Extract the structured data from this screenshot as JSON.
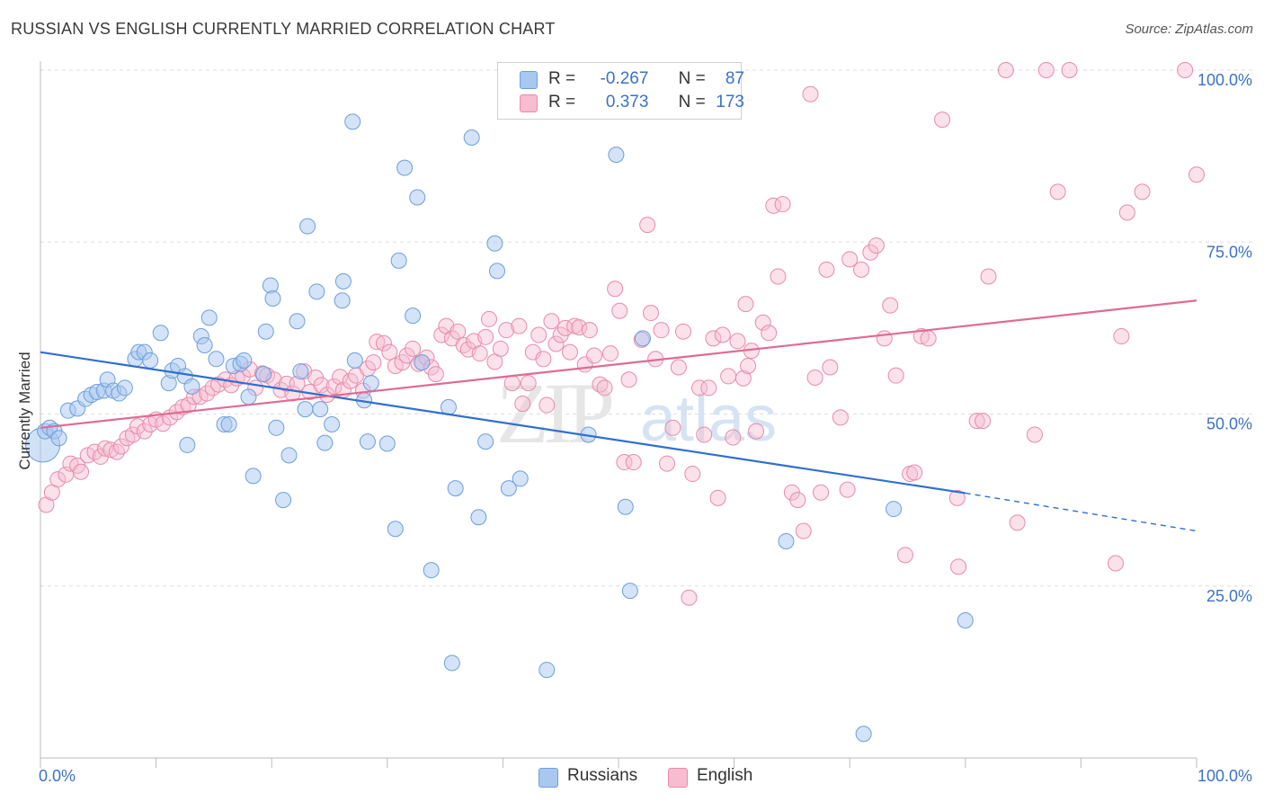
{
  "header": {
    "title": "RUSSIAN VS ENGLISH CURRENTLY MARRIED CORRELATION CHART",
    "source": "Source: ZipAtlas.com"
  },
  "legend": {
    "russians": {
      "r_label": "R =",
      "r_value": "-0.267",
      "n_label": "N =",
      "n_value": "87"
    },
    "english": {
      "r_label": "R =",
      "r_value": "0.373",
      "n_label": "N =",
      "n_value": "173"
    }
  },
  "colors": {
    "russians_fill": "#a9c8ef",
    "russians_stroke": "#6d9fdc",
    "russians_line": "#2f6fcf",
    "english_fill": "#f7bcd0",
    "english_stroke": "#e88aab",
    "english_line": "#e06a92",
    "tick_label": "#3a72c8",
    "grid": "#dddddd"
  },
  "watermark": {
    "zip": "ZIP",
    "atlas": "atlas"
  },
  "chart_data": {
    "type": "scatter",
    "title": "RUSSIAN VS ENGLISH CURRENTLY MARRIED CORRELATION CHART",
    "xlabel": "",
    "ylabel": "Currently Married",
    "xlim": [
      0,
      100
    ],
    "ylim": [
      0,
      100
    ],
    "x_tick_labels": [
      "0.0%",
      "100.0%"
    ],
    "y_tick_labels": [
      "25.0%",
      "50.0%",
      "75.0%",
      "100.0%"
    ],
    "y_ticks": [
      25,
      50,
      75,
      100
    ],
    "grid": true,
    "legend_position": "top-center",
    "series": [
      {
        "name": "Russians",
        "r": -0.267,
        "n": 87,
        "trend": {
          "x": [
            0,
            80
          ],
          "y": [
            59.0,
            38.5
          ],
          "dashed_to": [
            100,
            33.0
          ]
        },
        "points": [
          [
            0.2,
            45.5
          ],
          [
            0.4,
            47.5
          ],
          [
            0.8,
            48.0
          ],
          [
            1.2,
            47.5
          ],
          [
            1.6,
            46.5
          ],
          [
            2.4,
            50.5
          ],
          [
            3.2,
            50.8
          ],
          [
            3.9,
            52.2
          ],
          [
            4.4,
            52.8
          ],
          [
            4.9,
            53.2
          ],
          [
            5.5,
            53.4
          ],
          [
            5.8,
            55.0
          ],
          [
            6.3,
            53.4
          ],
          [
            6.8,
            53.0
          ],
          [
            7.3,
            53.8
          ],
          [
            8.2,
            58.0
          ],
          [
            8.5,
            59.0
          ],
          [
            9.0,
            59.0
          ],
          [
            9.5,
            57.8
          ],
          [
            10.4,
            61.8
          ],
          [
            11.1,
            54.5
          ],
          [
            11.4,
            56.3
          ],
          [
            11.9,
            57.0
          ],
          [
            12.5,
            55.5
          ],
          [
            12.7,
            45.5
          ],
          [
            13.1,
            54.0
          ],
          [
            13.9,
            61.3
          ],
          [
            14.2,
            60.0
          ],
          [
            14.6,
            64.0
          ],
          [
            15.2,
            58.0
          ],
          [
            15.9,
            48.5
          ],
          [
            16.3,
            48.5
          ],
          [
            16.7,
            57.0
          ],
          [
            17.3,
            57.3
          ],
          [
            17.6,
            57.8
          ],
          [
            18.0,
            52.5
          ],
          [
            18.4,
            41.0
          ],
          [
            19.3,
            55.8
          ],
          [
            19.5,
            62.0
          ],
          [
            19.9,
            68.7
          ],
          [
            20.1,
            66.8
          ],
          [
            20.4,
            48.0
          ],
          [
            21.0,
            37.5
          ],
          [
            21.5,
            44.0
          ],
          [
            22.2,
            63.5
          ],
          [
            22.5,
            56.2
          ],
          [
            22.9,
            50.7
          ],
          [
            23.1,
            77.3
          ],
          [
            23.9,
            67.8
          ],
          [
            24.2,
            50.7
          ],
          [
            24.6,
            45.8
          ],
          [
            25.2,
            48.5
          ],
          [
            26.1,
            66.5
          ],
          [
            26.2,
            69.3
          ],
          [
            27.0,
            92.5
          ],
          [
            27.2,
            57.8
          ],
          [
            28.0,
            52.0
          ],
          [
            28.3,
            46.0
          ],
          [
            28.6,
            54.5
          ],
          [
            30.0,
            45.7
          ],
          [
            30.7,
            33.3
          ],
          [
            31.0,
            72.3
          ],
          [
            31.5,
            85.8
          ],
          [
            32.2,
            64.3
          ],
          [
            32.6,
            81.5
          ],
          [
            33.0,
            57.5
          ],
          [
            33.8,
            27.3
          ],
          [
            35.3,
            51.0
          ],
          [
            35.6,
            13.8
          ],
          [
            35.9,
            39.2
          ],
          [
            37.3,
            90.2
          ],
          [
            37.9,
            35.0
          ],
          [
            39.3,
            74.8
          ],
          [
            39.5,
            70.8
          ],
          [
            40.5,
            39.2
          ],
          [
            41.5,
            40.6
          ],
          [
            43.8,
            12.8
          ],
          [
            47.4,
            47.0
          ],
          [
            49.8,
            87.7
          ],
          [
            50.6,
            36.5
          ],
          [
            51.0,
            24.3
          ],
          [
            52.1,
            61.0
          ],
          [
            64.5,
            31.5
          ],
          [
            71.2,
            3.5
          ],
          [
            73.8,
            36.2
          ],
          [
            80.0,
            20.0
          ],
          [
            38.5,
            46.0
          ]
        ],
        "sizes": {
          "0.2": "large"
        }
      },
      {
        "name": "English",
        "r": 0.373,
        "n": 173,
        "trend": {
          "x": [
            0,
            100
          ],
          "y": [
            48.0,
            66.5
          ]
        },
        "points": [
          [
            0.5,
            36.8
          ],
          [
            1.0,
            38.6
          ],
          [
            1.5,
            40.5
          ],
          [
            2.2,
            41.2
          ],
          [
            2.6,
            42.8
          ],
          [
            3.2,
            42.5
          ],
          [
            3.5,
            41.6
          ],
          [
            4.1,
            44.0
          ],
          [
            4.7,
            44.5
          ],
          [
            5.2,
            43.8
          ],
          [
            5.6,
            45.0
          ],
          [
            6.1,
            44.8
          ],
          [
            6.6,
            44.5
          ],
          [
            7.0,
            45.3
          ],
          [
            7.5,
            46.5
          ],
          [
            8.0,
            47.0
          ],
          [
            8.4,
            48.2
          ],
          [
            9.0,
            47.5
          ],
          [
            9.5,
            48.5
          ],
          [
            10.0,
            49.2
          ],
          [
            10.6,
            48.6
          ],
          [
            11.2,
            49.5
          ],
          [
            11.8,
            50.3
          ],
          [
            12.3,
            51.0
          ],
          [
            12.8,
            51.3
          ],
          [
            13.3,
            52.5
          ],
          [
            13.8,
            52.5
          ],
          [
            14.4,
            53.0
          ],
          [
            14.9,
            53.8
          ],
          [
            15.4,
            54.3
          ],
          [
            16.0,
            55.0
          ],
          [
            16.5,
            54.2
          ],
          [
            17.0,
            55.2
          ],
          [
            17.5,
            55.5
          ],
          [
            18.1,
            56.5
          ],
          [
            18.6,
            53.8
          ],
          [
            19.2,
            55.9
          ],
          [
            19.6,
            55.6
          ],
          [
            20.2,
            55.0
          ],
          [
            20.8,
            53.5
          ],
          [
            21.3,
            54.4
          ],
          [
            21.8,
            53.0
          ],
          [
            22.2,
            54.4
          ],
          [
            22.8,
            56.2
          ],
          [
            23.3,
            53.2
          ],
          [
            23.8,
            55.3
          ],
          [
            24.3,
            54.2
          ],
          [
            24.8,
            52.8
          ],
          [
            25.4,
            54.0
          ],
          [
            25.9,
            55.4
          ],
          [
            26.2,
            53.5
          ],
          [
            26.8,
            54.8
          ],
          [
            27.3,
            55.6
          ],
          [
            27.9,
            53.4
          ],
          [
            28.3,
            56.6
          ],
          [
            28.8,
            57.5
          ],
          [
            29.1,
            60.5
          ],
          [
            29.7,
            60.3
          ],
          [
            30.2,
            59.0
          ],
          [
            30.7,
            57.0
          ],
          [
            31.3,
            57.5
          ],
          [
            31.7,
            58.5
          ],
          [
            32.2,
            59.5
          ],
          [
            32.7,
            57.3
          ],
          [
            33.0,
            57.5
          ],
          [
            33.4,
            58.2
          ],
          [
            33.8,
            56.8
          ],
          [
            34.2,
            55.8
          ],
          [
            34.7,
            61.5
          ],
          [
            35.1,
            62.8
          ],
          [
            35.6,
            61.0
          ],
          [
            36.1,
            62.0
          ],
          [
            36.6,
            60.0
          ],
          [
            37.0,
            59.4
          ],
          [
            37.5,
            60.6
          ],
          [
            38.0,
            58.8
          ],
          [
            38.5,
            61.2
          ],
          [
            38.8,
            63.8
          ],
          [
            39.3,
            57.6
          ],
          [
            39.8,
            59.5
          ],
          [
            40.3,
            62.2
          ],
          [
            40.8,
            54.5
          ],
          [
            41.4,
            62.8
          ],
          [
            41.7,
            51.5
          ],
          [
            42.2,
            54.5
          ],
          [
            42.6,
            59.0
          ],
          [
            43.1,
            61.5
          ],
          [
            43.5,
            58.0
          ],
          [
            43.8,
            51.3
          ],
          [
            44.2,
            63.5
          ],
          [
            44.6,
            60.2
          ],
          [
            45.0,
            61.5
          ],
          [
            45.4,
            62.5
          ],
          [
            45.8,
            59.0
          ],
          [
            46.2,
            62.8
          ],
          [
            46.6,
            62.6
          ],
          [
            47.1,
            57.2
          ],
          [
            47.5,
            62.2
          ],
          [
            47.9,
            58.5
          ],
          [
            48.4,
            54.3
          ],
          [
            48.8,
            53.8
          ],
          [
            49.3,
            58.8
          ],
          [
            49.7,
            68.2
          ],
          [
            50.1,
            65.0
          ],
          [
            50.5,
            43.0
          ],
          [
            50.9,
            55.0
          ],
          [
            51.3,
            43.0
          ],
          [
            52.0,
            60.8
          ],
          [
            52.5,
            77.5
          ],
          [
            52.8,
            64.7
          ],
          [
            53.2,
            58.0
          ],
          [
            53.7,
            62.2
          ],
          [
            54.2,
            42.8
          ],
          [
            54.7,
            48.0
          ],
          [
            55.2,
            56.8
          ],
          [
            55.6,
            62.0
          ],
          [
            56.1,
            23.3
          ],
          [
            56.4,
            41.3
          ],
          [
            57.0,
            53.8
          ],
          [
            57.4,
            47.0
          ],
          [
            57.8,
            53.8
          ],
          [
            58.2,
            61.0
          ],
          [
            58.6,
            37.8
          ],
          [
            59.0,
            61.5
          ],
          [
            59.5,
            55.5
          ],
          [
            59.9,
            46.6
          ],
          [
            60.3,
            60.6
          ],
          [
            60.8,
            55.2
          ],
          [
            61.2,
            57.0
          ],
          [
            61.5,
            59.2
          ],
          [
            61.9,
            47.5
          ],
          [
            62.5,
            63.3
          ],
          [
            63.0,
            61.8
          ],
          [
            63.4,
            80.3
          ],
          [
            63.8,
            70.0
          ],
          [
            64.2,
            80.5
          ],
          [
            65.0,
            38.6
          ],
          [
            65.5,
            37.5
          ],
          [
            66.0,
            33.0
          ],
          [
            66.6,
            96.5
          ],
          [
            67.0,
            55.3
          ],
          [
            67.5,
            38.6
          ],
          [
            68.0,
            71.0
          ],
          [
            68.3,
            56.8
          ],
          [
            69.2,
            49.5
          ],
          [
            69.8,
            39.0
          ],
          [
            70.0,
            72.5
          ],
          [
            71.0,
            71.0
          ],
          [
            71.8,
            73.5
          ],
          [
            72.3,
            74.5
          ],
          [
            73.0,
            61.0
          ],
          [
            73.5,
            65.8
          ],
          [
            74.0,
            55.6
          ],
          [
            74.8,
            29.5
          ],
          [
            75.2,
            41.3
          ],
          [
            75.6,
            41.5
          ],
          [
            76.2,
            61.3
          ],
          [
            76.8,
            61.0
          ],
          [
            78.0,
            92.8
          ],
          [
            79.4,
            27.8
          ],
          [
            81.0,
            49.0
          ],
          [
            81.5,
            49.0
          ],
          [
            82.0,
            70.0
          ],
          [
            83.5,
            100.0
          ],
          [
            84.5,
            34.2
          ],
          [
            86.0,
            47.0
          ],
          [
            87.0,
            100.0
          ],
          [
            88.0,
            82.3
          ],
          [
            89.0,
            100.0
          ],
          [
            93.0,
            28.3
          ],
          [
            93.5,
            61.3
          ],
          [
            94.0,
            79.3
          ],
          [
            95.3,
            82.3
          ],
          [
            99.0,
            100.0
          ],
          [
            100.0,
            84.8
          ],
          [
            79.3,
            37.8
          ],
          [
            61.0,
            66.0
          ]
        ]
      }
    ]
  }
}
